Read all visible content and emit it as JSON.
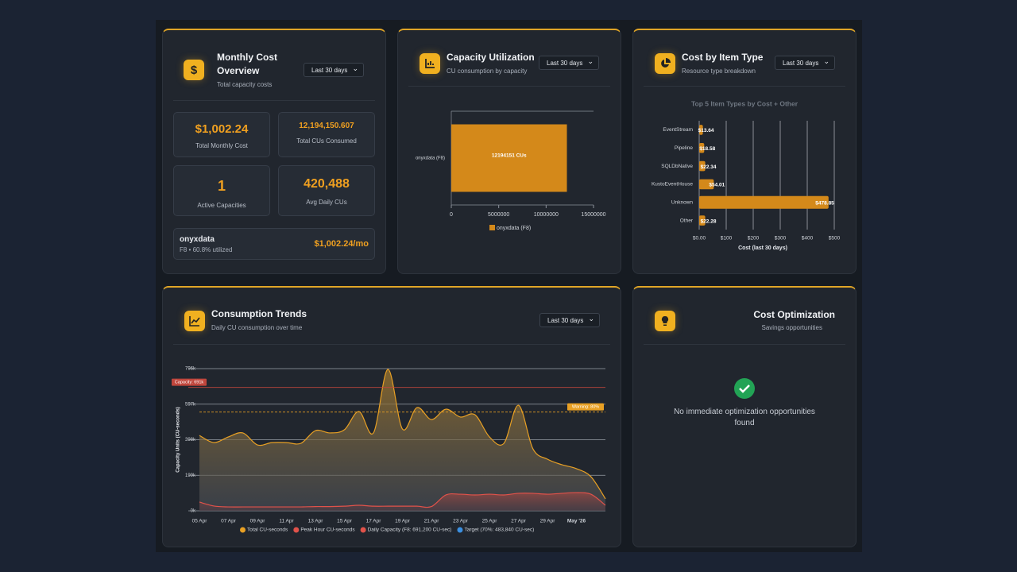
{
  "panels": {
    "monthly_cost": {
      "icon": "$",
      "title": "Monthly Cost Overview",
      "subtitle": "Total capacity costs",
      "dropdown": "Last 30 days",
      "stats": [
        {
          "value": "$1,002.24",
          "label": "Total Monthly Cost"
        },
        {
          "value": "12,194,150.607",
          "label": "Total CUs Consumed"
        },
        {
          "value": "1",
          "label": "Active Capacities"
        },
        {
          "value": "420,488",
          "label": "Avg Daily CUs"
        }
      ],
      "capacity": {
        "name": "onyxdata",
        "detail": "F8 • 60.8% utilized",
        "cost": "$1,002.24/mo"
      }
    },
    "capacity_utilization": {
      "title": "Capacity Utilization",
      "subtitle": "CU consumption by capacity",
      "dropdown": "Last 30 days"
    },
    "cost_by_item": {
      "title": "Cost by Item Type",
      "subtitle": "Resource type breakdown",
      "dropdown": "Last 30 days"
    },
    "consumption_trends": {
      "title": "Consumption Trends",
      "subtitle": "Daily CU consumption over time",
      "dropdown": "Last 30 days"
    },
    "cost_optimization": {
      "title": "Cost Optimization",
      "subtitle": "Savings opportunities",
      "message": "No immediate optimization opportunities found"
    }
  },
  "chart_data": [
    {
      "type": "hbar",
      "categories": [
        "onyxdata (F8)"
      ],
      "series": [
        {
          "name": "onyxdata (F8)",
          "color": "#d4891a",
          "values": [
            12194151
          ],
          "value_labels": [
            "12194151 CUs"
          ]
        }
      ],
      "xlim": [
        0,
        15000000
      ],
      "xticks": [
        0,
        5000000,
        10000000,
        15000000
      ]
    },
    {
      "type": "hbar",
      "title": "Top 5 Item Types by Cost + Other",
      "x_label": "Cost (last 30 days)",
      "categories": [
        "EventStream",
        "Pipeline",
        "SQLDbNative",
        "KustoEventHouse",
        "Unknown",
        "Other"
      ],
      "values": [
        13.64,
        18.58,
        22.34,
        54.01,
        478.85,
        22.28
      ],
      "value_labels": [
        "$13.64",
        "$18.58",
        "$22.34",
        "$54.01",
        "$478.85",
        "$22.28"
      ],
      "color": "#d4891a",
      "xlim": [
        0,
        500
      ],
      "xticks": [
        {
          "value": 0,
          "label": "$0.00"
        },
        {
          "value": 100,
          "label": "$100"
        },
        {
          "value": 200,
          "label": "$200"
        },
        {
          "value": 300,
          "label": "$300"
        },
        {
          "value": 400,
          "label": "$400"
        },
        {
          "value": 500,
          "label": "$500"
        }
      ],
      "grid": true
    },
    {
      "type": "area",
      "y_label": "Capacity Units (CU-seconds)",
      "categories": [
        "05 Apr",
        null,
        "07 Apr",
        null,
        "09 Apr",
        null,
        "11 Apr",
        null,
        "13 Apr",
        null,
        "15 Apr",
        null,
        "17 Apr",
        null,
        "19 Apr",
        null,
        "21 Apr",
        null,
        "23 Apr",
        null,
        "25 Apr",
        null,
        "27 Apr",
        null,
        "29 Apr",
        null,
        "May '26",
        null,
        null
      ],
      "series": [
        {
          "name": "Total CU-seconds",
          "color": "#e8a024",
          "values": [
            422000,
            382000,
            414000,
            436000,
            369000,
            382000,
            382000,
            378000,
            449000,
            436000,
            454000,
            556000,
            436000,
            792000,
            458000,
            578000,
            511000,
            569000,
            525000,
            538000,
            414000,
            378000,
            591000,
            347000,
            289000,
            258000,
            236000,
            191000,
            67000
          ]
        },
        {
          "name": "Peak Hour CU-seconds",
          "color": "#e0524a",
          "values": [
            49000,
            27000,
            22000,
            22000,
            22000,
            22000,
            22000,
            22000,
            24000,
            24000,
            26000,
            31000,
            26000,
            26000,
            26000,
            26000,
            24000,
            89000,
            93000,
            89000,
            93000,
            89000,
            98000,
            98000,
            93000,
            98000,
            102000,
            93000,
            31000
          ]
        }
      ],
      "legend_extra": [
        {
          "name": "Daily Capacity (F8: 691,200 CU-sec)",
          "color": "#e0524a"
        },
        {
          "name": "Target (70%: 483,840 CU-sec)",
          "color": "#3b8fe0"
        }
      ],
      "reference_lines": [
        {
          "label": "Capacity: 691k",
          "value": 691200,
          "color": "#c0463c"
        },
        {
          "label": "Warning: 80%",
          "value": 552960,
          "color": "#e8a024"
        }
      ],
      "ylim": [
        0,
        796000
      ],
      "yticks": [
        {
          "value": 0,
          "label": "0k"
        },
        {
          "value": 199000,
          "label": "199k"
        },
        {
          "value": 398000,
          "label": "398k"
        },
        {
          "value": 597000,
          "label": "597k"
        },
        {
          "value": 796000,
          "label": "796k"
        }
      ],
      "grid": true
    }
  ]
}
